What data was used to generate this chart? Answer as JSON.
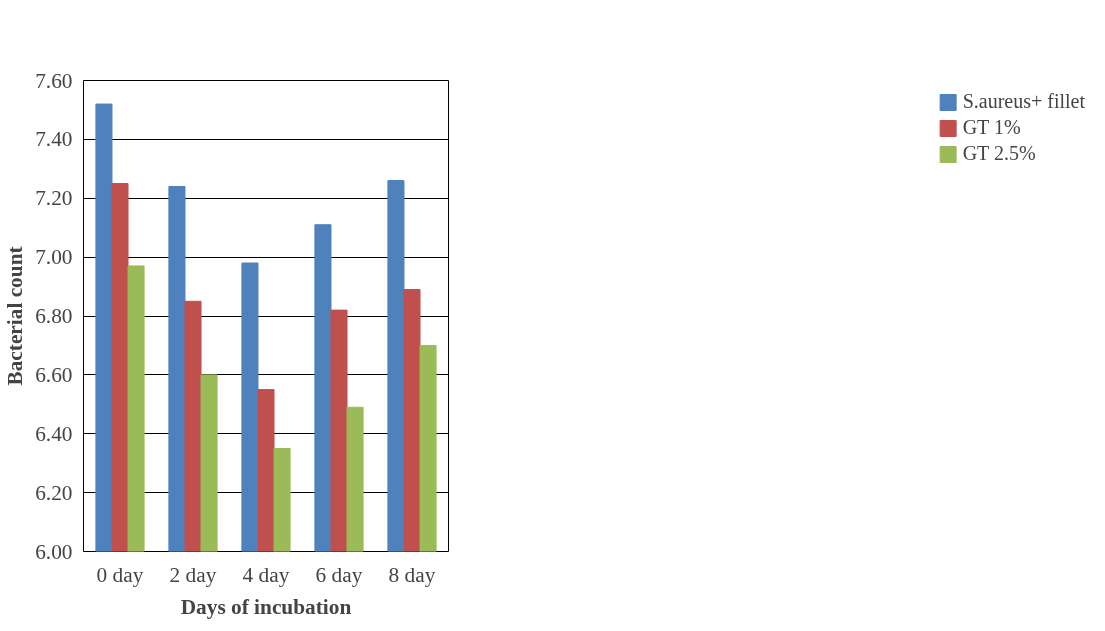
{
  "chart_data": {
    "type": "bar",
    "xlabel": "Days of incubation",
    "ylabel": "Bacterial count",
    "categories": [
      "0 day",
      "2 day",
      "4 day",
      "6 day",
      "8 day"
    ],
    "series": [
      {
        "name": "S.aureus+ fillet",
        "color": "#4f81bd",
        "values": [
          7.52,
          7.24,
          6.98,
          7.11,
          7.26
        ]
      },
      {
        "name": "GT 1%",
        "color": "#c0504d",
        "values": [
          7.25,
          6.85,
          6.55,
          6.82,
          6.89
        ]
      },
      {
        "name": "GT 2.5%",
        "color": "#9bbb59",
        "values": [
          6.97,
          6.6,
          6.35,
          6.49,
          6.7
        ]
      }
    ],
    "ylim": [
      6.0,
      7.6
    ],
    "yticks": [
      {
        "value": 6.0,
        "label": "6.00"
      },
      {
        "value": 6.2,
        "label": "6.20"
      },
      {
        "value": 6.4,
        "label": "6.40"
      },
      {
        "value": 6.6,
        "label": "6.60"
      },
      {
        "value": 6.8,
        "label": "6.80"
      },
      {
        "value": 7.0,
        "label": "7.00"
      },
      {
        "value": 7.2,
        "label": "7.20"
      },
      {
        "value": 7.4,
        "label": "7.40"
      },
      {
        "value": 7.6,
        "label": "7.60"
      }
    ],
    "grid": "y",
    "legend": "right"
  }
}
